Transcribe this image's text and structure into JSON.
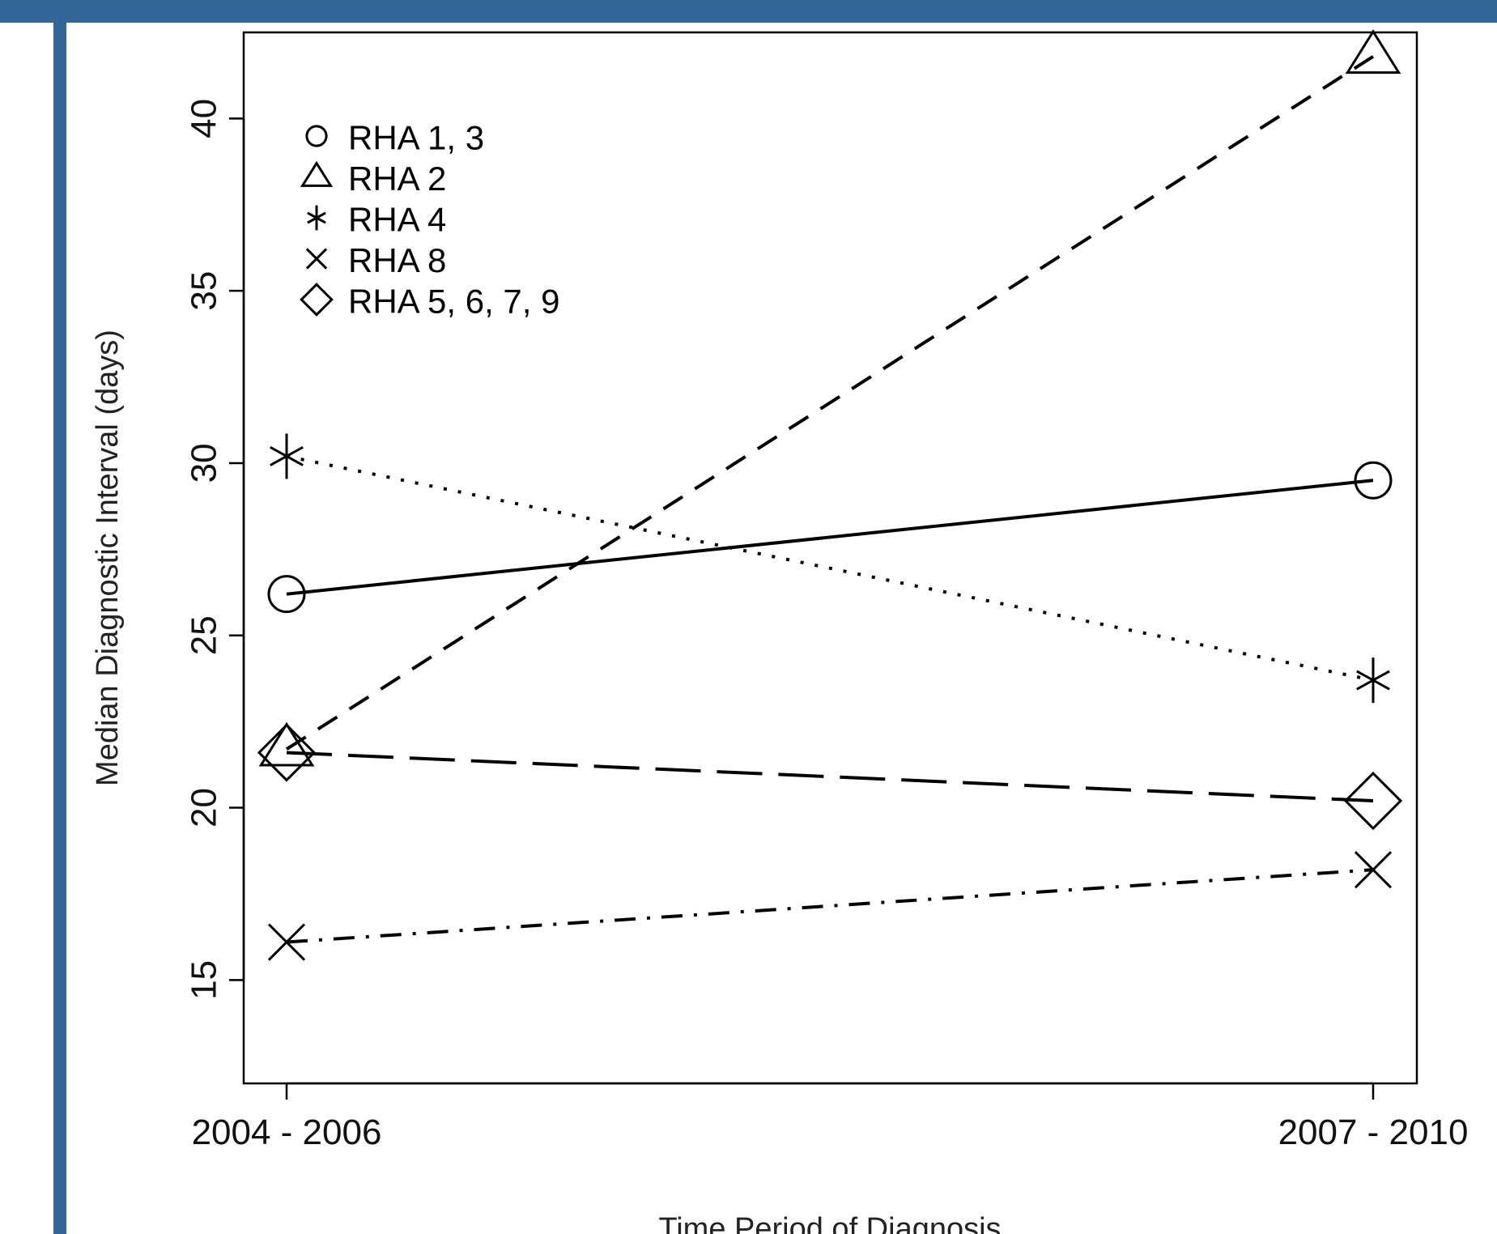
{
  "colors": {
    "background_frame": "#336699",
    "panel": "#ffffff",
    "ink": "#000000"
  },
  "chart_data": {
    "type": "line",
    "categories": [
      "2004 - 2006",
      "2007 - 2010"
    ],
    "xlabel": "Time Period of Diagnosis",
    "ylabel": "Median Diagnostic Interval (days)",
    "ylim": [
      12,
      42.5
    ],
    "yticks": [
      15,
      20,
      25,
      30,
      35,
      40
    ],
    "grid": false,
    "legend": "top-left",
    "series": [
      {
        "name": "RHA 1, 3",
        "values": [
          26.2,
          29.5
        ],
        "marker": "circle",
        "line_style": "solid"
      },
      {
        "name": "RHA 2",
        "values": [
          21.7,
          41.8
        ],
        "marker": "triangle",
        "line_style": "dashed"
      },
      {
        "name": "RHA 4",
        "values": [
          30.2,
          23.7
        ],
        "marker": "asterisk",
        "line_style": "dotted"
      },
      {
        "name": "RHA 8",
        "values": [
          16.1,
          18.2
        ],
        "marker": "cross",
        "line_style": "dash-dot"
      },
      {
        "name": "RHA 5, 6, 7, 9",
        "values": [
          21.6,
          20.2
        ],
        "marker": "diamond",
        "line_style": "long-dash"
      }
    ]
  }
}
